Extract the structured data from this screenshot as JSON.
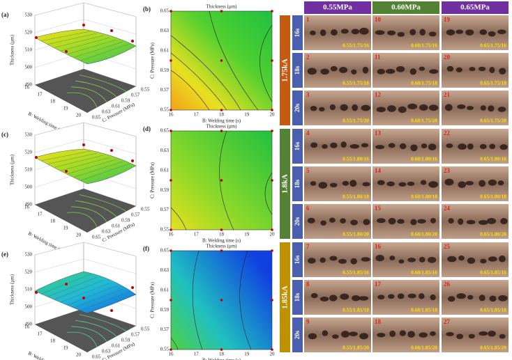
{
  "panels": [
    {
      "label": "(a)",
      "kind": "surface"
    },
    {
      "label": "(b)",
      "kind": "contour"
    },
    {
      "label": "(c)",
      "kind": "surface"
    },
    {
      "label": "(d)",
      "kind": "contour"
    },
    {
      "label": "(e)",
      "kind": "surface"
    },
    {
      "label": "(f)",
      "kind": "contour"
    }
  ],
  "axes": {
    "z_title": "Thickness (μm)",
    "z_ticks": [
      "490",
      "500",
      "510",
      "520",
      "530"
    ],
    "time_title": "B: Welding time (s)",
    "time_ticks": [
      "16",
      "17",
      "18",
      "19",
      "20"
    ],
    "pressure_title": "C: Pressure (MPa)",
    "pressure_ticks": [
      "0.55",
      "0.57",
      "0.59",
      "0.61",
      "0.63",
      "0.65"
    ],
    "contour_title": "Thickness (μm)"
  },
  "grid": {
    "columns": [
      "0.55MPa",
      "0.60MPa",
      "0.65MPa"
    ],
    "groups": [
      {
        "label": "1.75kA",
        "rows": [
          "16s",
          "18s",
          "20s"
        ]
      },
      {
        "label": "1.8kA",
        "rows": [
          "16s",
          "18s",
          "20s"
        ]
      },
      {
        "label": "1.85kA",
        "rows": [
          "16s",
          "18s",
          "20s"
        ]
      }
    ],
    "cells": [
      {
        "num": "1",
        "caption": "0.55/1.75/16"
      },
      {
        "num": "10",
        "caption": "0.60/1.75/16"
      },
      {
        "num": "19",
        "caption": "0.65/1.75/16"
      },
      {
        "num": "2",
        "caption": "0.55/1.75/18"
      },
      {
        "num": "11",
        "caption": "0.60/1.75/18"
      },
      {
        "num": "20",
        "caption": "0.65/1.75/18"
      },
      {
        "num": "3",
        "caption": "0.55/1.75/20"
      },
      {
        "num": "12",
        "caption": "0.60/1.75/20"
      },
      {
        "num": "21",
        "caption": "0.65/1.75/20"
      },
      {
        "num": "4",
        "caption": "0.55/1.80/16"
      },
      {
        "num": "13",
        "caption": "0.60/1.80/16"
      },
      {
        "num": "22",
        "caption": "0.65/1.80/16"
      },
      {
        "num": "5",
        "caption": "0.55/1.80/18"
      },
      {
        "num": "14",
        "caption": "0.60/1.80/18"
      },
      {
        "num": "23",
        "caption": "0.65/1.80/18"
      },
      {
        "num": "6",
        "caption": "0.55/1.80/20"
      },
      {
        "num": "15",
        "caption": "0.60/1.80/20"
      },
      {
        "num": "24",
        "caption": "0.65/1.80/20"
      },
      {
        "num": "7",
        "caption": "0.55/1.85/16"
      },
      {
        "num": "16",
        "caption": "0.60/1.85/16"
      },
      {
        "num": "25",
        "caption": "0.65/1.85/16"
      },
      {
        "num": "8",
        "caption": "0.55/1.85/18"
      },
      {
        "num": "17",
        "caption": "0.60/1.85/18"
      },
      {
        "num": "26",
        "caption": "0.65/1.85/18"
      },
      {
        "num": "9",
        "caption": "0.55/1.85/20"
      },
      {
        "num": "18",
        "caption": "0.60/1.85/20"
      },
      {
        "num": "27",
        "caption": "0.65/1.85/20"
      }
    ]
  }
}
